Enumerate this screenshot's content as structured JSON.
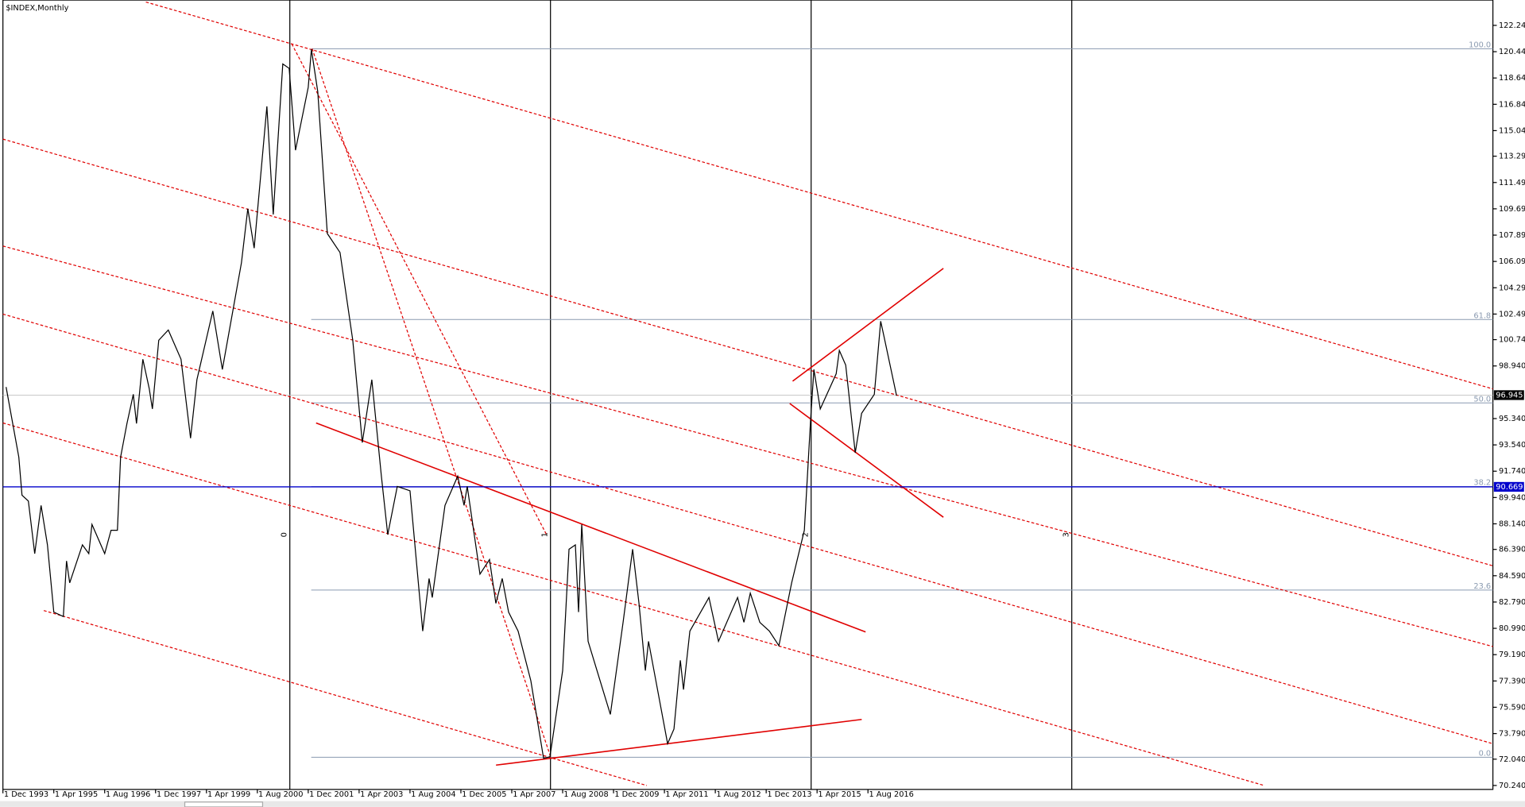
{
  "chart_data": {
    "type": "line",
    "title": "$INDEX,Monthly",
    "x": [
      "1 Jan 1994",
      "1 May 1994",
      "1 Jun 1994",
      "1 Aug 1994",
      "1 Oct 1994",
      "1 Dec 1994",
      "1 Feb 1995",
      "1 Apr 1995",
      "1 Jul 1995",
      "1 Aug 1995",
      "1 Sep 1995",
      "1 Jan 1996",
      "1 Mar 1996",
      "1 Apr 1996",
      "1 Aug 1996",
      "1 Oct 1996",
      "1 Dec 1996",
      "1 Jan 1997",
      "1 Mar 1997",
      "1 May 1997",
      "1 Jun 1997",
      "1 Aug 1997",
      "1 Oct 1997",
      "1 Nov 1997",
      "1 Jan 1998",
      "1 Apr 1998",
      "1 Aug 1998",
      "1 Nov 1998",
      "1 Jan 1999",
      "1 Jun 1999",
      "1 Sep 1999",
      "1 Mar 2000",
      "1 May 2000",
      "1 Jul 2000",
      "1 Nov 2000",
      "1 Jan 2001",
      "1 Apr 2001",
      "1 Jun 2001",
      "1 Aug 2001",
      "1 Dec 2001",
      "1 Jan 2002",
      "1 Mar 2002",
      "1 Jun 2002",
      "1 Oct 2002",
      "1 Feb 2003",
      "1 May 2003",
      "1 Aug 2003",
      "1 Nov 2003",
      "1 Jan 2004",
      "1 Apr 2004",
      "1 Aug 2004",
      "1 Dec 2004",
      "1 Feb 2005",
      "1 Mar 2005",
      "1 Jul 2005",
      "1 Nov 2005",
      "1 Jan 2006",
      "1 Feb 2006",
      "1 Jun 2006",
      "1 Sep 2006",
      "1 Nov 2006",
      "1 Jan 2007",
      "1 Mar 2007",
      "1 Jun 2007",
      "1 Oct 2007",
      "1 Feb 2008",
      "1 Apr 2008",
      "1 Aug 2008",
      "1 Oct 2008",
      "1 Dec 2008",
      "1 Jan 2009",
      "1 Feb 2009",
      "1 Apr 2009",
      "1 Nov 2009",
      "1 Mar 2010",
      "1 Jun 2010",
      "1 Aug 2010",
      "1 Oct 2010",
      "1 Nov 2010",
      "1 May 2011",
      "1 Jul 2011",
      "1 Sep 2011",
      "1 Oct 2011",
      "1 Dec 2011",
      "1 Jun 2012",
      "1 Sep 2012",
      "1 Mar 2013",
      "1 May 2013",
      "1 Jul 2013",
      "1 Oct 2013",
      "1 Jan 2014",
      "1 Apr 2014",
      "1 Aug 2014",
      "1 Dec 2014",
      "1 Feb 2015",
      "1 Mar 2015",
      "1 May 2015",
      "1 Oct 2015",
      "1 Nov 2015",
      "1 Jan 2016",
      "1 Apr 2016",
      "1 Jun 2016",
      "1 Oct 2016",
      "1 Dec 2016",
      "1 Jan 2017",
      "1 May 2017"
    ],
    "series": [
      {
        "color": "#000000",
        "values": [
          97.5,
          92.7,
          90.1,
          89.7,
          86.1,
          89.4,
          86.7,
          82.1,
          81.8,
          85.6,
          84.1,
          86.7,
          86.1,
          88.1,
          86.1,
          87.7,
          87.7,
          92.7,
          95.0,
          97.0,
          95.0,
          99.4,
          97.4,
          96.0,
          100.7,
          101.4,
          99.4,
          94.0,
          98.0,
          102.7,
          98.7,
          106.0,
          109.7,
          107.0,
          116.7,
          109.3,
          119.6,
          119.3,
          113.7,
          118.0,
          120.6,
          117.7,
          108.0,
          106.7,
          100.7,
          93.7,
          98.0,
          91.4,
          87.4,
          90.7,
          90.4,
          80.8,
          84.4,
          83.1,
          89.4,
          91.4,
          89.4,
          90.7,
          84.7,
          85.7,
          82.7,
          84.4,
          82.1,
          80.8,
          77.4,
          72.1,
          72.2,
          78.1,
          86.4,
          86.7,
          82.1,
          88.1,
          80.1,
          75.1,
          81.4,
          86.4,
          82.7,
          78.1,
          80.1,
          73.1,
          74.1,
          78.8,
          76.8,
          80.8,
          83.1,
          80.1,
          83.1,
          81.4,
          83.4,
          81.4,
          80.8,
          79.8,
          84.1,
          87.7,
          95.4,
          98.7,
          96.0,
          98.4,
          100.0,
          99.0,
          93.0,
          95.7,
          97.0,
          102.0,
          101.0,
          96.9
        ]
      }
    ],
    "xticks": [
      "1 Dec 1993",
      "1 Apr 1995",
      "1 Aug 1996",
      "1 Dec 1997",
      "1 Apr 1999",
      "1 Aug 2000",
      "1 Dec 2001",
      "1 Apr 2003",
      "1 Aug 2004",
      "1 Dec 2005",
      "1 Apr 2007",
      "1 Aug 2008",
      "1 Dec 2009",
      "1 Apr 2011",
      "1 Aug 2012",
      "1 Dec 2013",
      "1 Apr 2015",
      "1 Aug 2016"
    ],
    "ylim": [
      69.97,
      123.97
    ],
    "yticks": [
      {
        "value": 122.24,
        "label": "122.240"
      },
      {
        "value": 120.44,
        "label": "120.440"
      },
      {
        "value": 118.64,
        "label": "118.640"
      },
      {
        "value": 116.84,
        "label": "116.840"
      },
      {
        "value": 115.04,
        "label": "115.040"
      },
      {
        "value": 113.29,
        "label": "113.290"
      },
      {
        "value": 111.49,
        "label": "111.490"
      },
      {
        "value": 109.69,
        "label": "109.690"
      },
      {
        "value": 107.89,
        "label": "107.890"
      },
      {
        "value": 106.09,
        "label": "106.090"
      },
      {
        "value": 104.29,
        "label": "104.290"
      },
      {
        "value": 102.49,
        "label": "102.490"
      },
      {
        "value": 100.74,
        "label": "100.740"
      },
      {
        "value": 98.94,
        "label": "98.940"
      },
      {
        "value": 95.34,
        "label": "95.340"
      },
      {
        "value": 93.54,
        "label": "93.540"
      },
      {
        "value": 91.74,
        "label": "91.740"
      },
      {
        "value": 89.94,
        "label": "89.940"
      },
      {
        "value": 88.14,
        "label": "88.140"
      },
      {
        "value": 86.39,
        "label": "86.390"
      },
      {
        "value": 84.59,
        "label": "84.590"
      },
      {
        "value": 82.79,
        "label": "82.790"
      },
      {
        "value": 80.99,
        "label": "80.990"
      },
      {
        "value": 79.19,
        "label": "79.190"
      },
      {
        "value": 77.39,
        "label": "77.390"
      },
      {
        "value": 75.59,
        "label": "75.590"
      },
      {
        "value": 73.79,
        "label": "73.790"
      },
      {
        "value": 72.04,
        "label": "72.040"
      },
      {
        "value": 70.24,
        "label": "70.240"
      }
    ],
    "current_price": {
      "value": 96.945,
      "label": "96.945"
    },
    "level_line": {
      "value": 90.669,
      "label": "90.669",
      "color": "#0000cc"
    },
    "fibonacci": [
      {
        "label": "100.0",
        "value": 120.64
      },
      {
        "label": "61.8",
        "value": 102.12
      },
      {
        "label": "50.0",
        "value": 96.41
      },
      {
        "label": "38.2",
        "value": 90.69
      },
      {
        "label": "23.6",
        "value": 83.61
      },
      {
        "label": "0.0",
        "value": 72.17
      }
    ],
    "cycles": [
      "0",
      "1",
      "2",
      "3"
    ]
  }
}
